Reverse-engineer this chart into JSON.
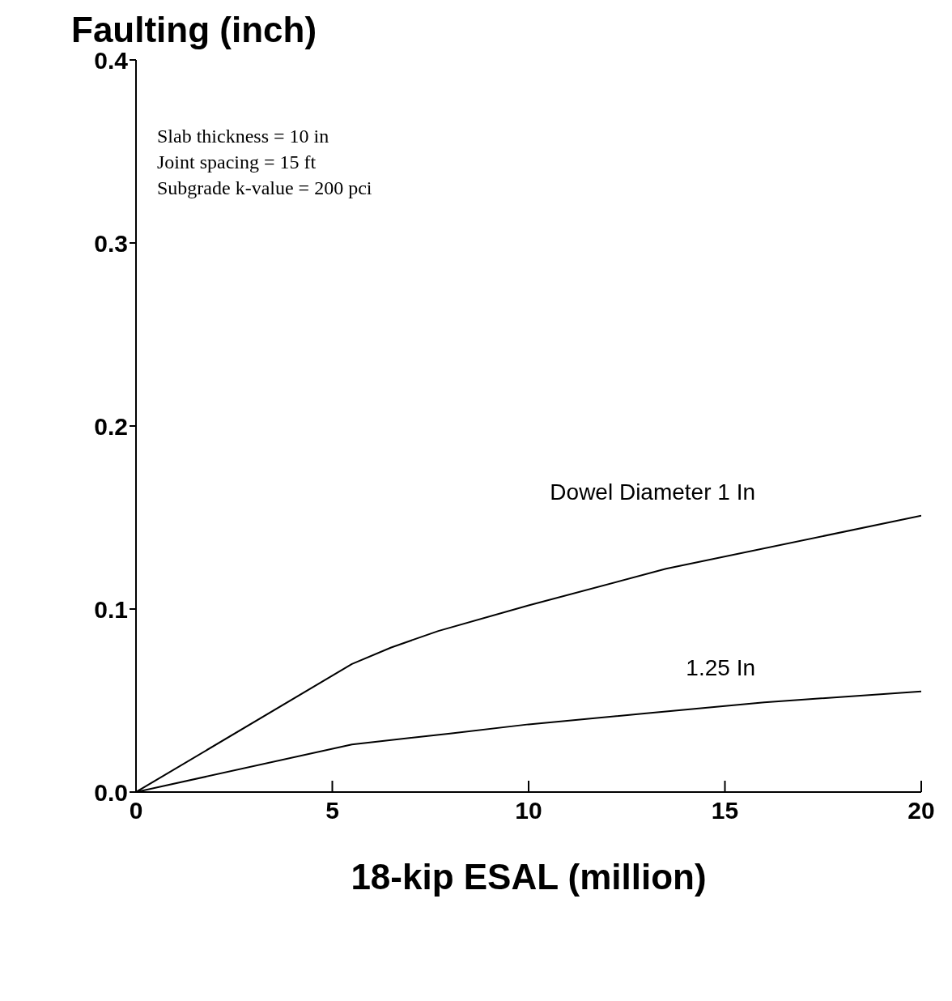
{
  "chart_data": {
    "type": "line",
    "ylabel": "Faulting  (inch)",
    "xlabel": "18-kip ESAL  (million)",
    "annotations": [
      "Slab thickness = 10 in",
      "Joint spacing = 15 ft",
      "Subgrade k-value = 200 pci"
    ],
    "xlim": [
      0,
      20
    ],
    "xticks": [
      0,
      5,
      10,
      15,
      20
    ],
    "ylim": [
      0,
      0.4
    ],
    "yticks": [
      {
        "value": 0,
        "label": "0.0"
      },
      {
        "value": 0.1,
        "label": "0.1"
      },
      {
        "value": 0.2,
        "label": "0.2"
      },
      {
        "value": 0.3,
        "label": "0.3"
      },
      {
        "value": 0.4,
        "label": "0.4"
      }
    ],
    "grid": false,
    "legend": false,
    "marker": "none",
    "line_style": "solid",
    "series": [
      {
        "name": "Dowel Diameter 1 In",
        "color": "#000000",
        "x": [
          0,
          5.5,
          6.5,
          7.7,
          10,
          13.5,
          20
        ],
        "values": [
          0,
          0.07,
          0.079,
          0.088,
          0.102,
          0.122,
          0.151
        ]
      },
      {
        "name": "1.25 In",
        "color": "#000000",
        "x": [
          0,
          5.5,
          8,
          10,
          13,
          16,
          20
        ],
        "values": [
          0,
          0.026,
          0.032,
          0.037,
          0.043,
          0.049,
          0.055
        ]
      }
    ]
  }
}
